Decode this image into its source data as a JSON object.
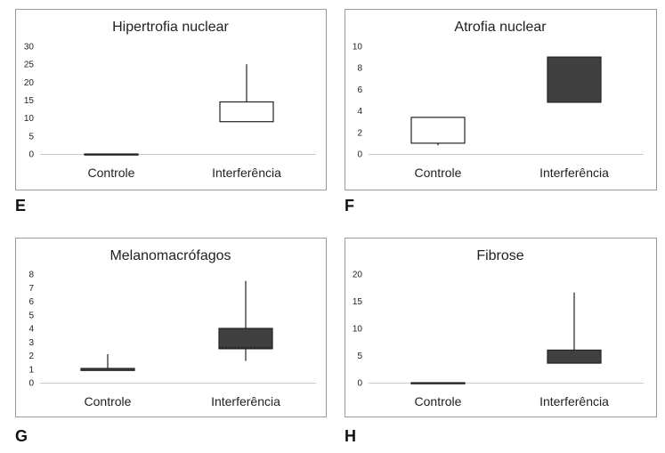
{
  "chart_data": [
    {
      "panel": "E",
      "type": "box",
      "title": "Hipertrofia nuclear",
      "categories": [
        "Controle",
        "Interferência"
      ],
      "ylim": [
        0,
        30
      ],
      "yticks": [
        0,
        5,
        10,
        15,
        20,
        25,
        30
      ],
      "boxes": [
        {
          "min": 0,
          "q1": 0,
          "median": 0,
          "q3": 0,
          "max": 0,
          "fill": "#ffffff"
        },
        {
          "min": 9,
          "q1": 9,
          "median": 9,
          "q3": 14.5,
          "max": 25,
          "fill": "#ffffff"
        }
      ]
    },
    {
      "panel": "F",
      "type": "box",
      "title": "Atrofia nuclear",
      "categories": [
        "Controle",
        "Interferência"
      ],
      "ylim": [
        0,
        10
      ],
      "yticks": [
        0,
        2,
        4,
        6,
        8,
        10
      ],
      "boxes": [
        {
          "min": 0.8,
          "q1": 1,
          "median": 1,
          "q3": 3.4,
          "max": 3.4,
          "fill": "#ffffff"
        },
        {
          "min": 4.8,
          "q1": 4.8,
          "median": 4.8,
          "q3": 9,
          "max": 9,
          "fill": "#404040"
        }
      ]
    },
    {
      "panel": "G",
      "type": "box",
      "title": "Melanomacrófagos",
      "categories": [
        "Controle",
        "Interferência"
      ],
      "ylim": [
        0,
        8
      ],
      "yticks": [
        0,
        1,
        2,
        3,
        4,
        5,
        6,
        7,
        8
      ],
      "boxes": [
        {
          "min": 0.9,
          "q1": 0.9,
          "median": 0.9,
          "q3": 1.05,
          "max": 2.1,
          "fill": "#404040"
        },
        {
          "min": 1.6,
          "q1": 2.5,
          "median": 2.6,
          "q3": 4,
          "max": 7.5,
          "fill": "#404040"
        }
      ]
    },
    {
      "panel": "H",
      "type": "box",
      "title": "Fibrose",
      "categories": [
        "Controle",
        "Interferência"
      ],
      "ylim": [
        0,
        20
      ],
      "yticks": [
        0,
        5,
        10,
        15,
        20
      ],
      "boxes": [
        {
          "min": 0,
          "q1": 0,
          "median": 0,
          "q3": 0,
          "max": 0,
          "fill": "#404040"
        },
        {
          "min": 3.6,
          "q1": 3.6,
          "median": 3.6,
          "q3": 6,
          "max": 16.6,
          "fill": "#404040"
        }
      ]
    }
  ]
}
